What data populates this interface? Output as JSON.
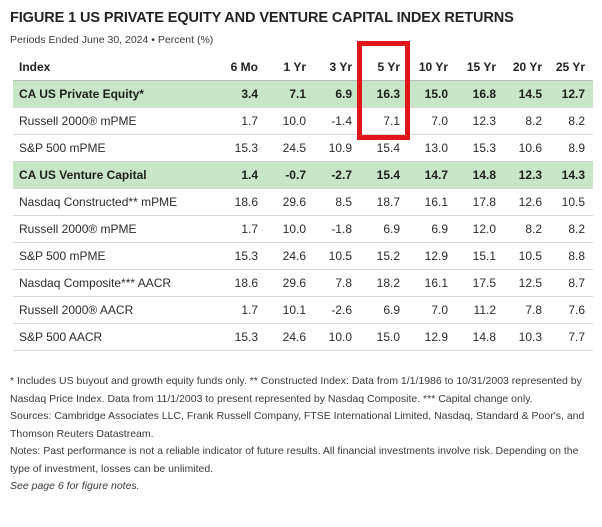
{
  "title": "FIGURE 1  US PRIVATE EQUITY AND VENTURE CAPITAL INDEX RETURNS",
  "subtitle": "Periods Ended June 30, 2024 • Percent (%)",
  "table": {
    "columns": [
      "Index",
      "6 Mo",
      "1 Yr",
      "3 Yr",
      "5 Yr",
      "10 Yr",
      "15 Yr",
      "20 Yr",
      "25 Yr"
    ],
    "highlighted_column": "5 Yr",
    "highlight_color": "#e0161b",
    "group_header_color": "#c7e5c7",
    "rows": [
      {
        "label": "CA US Private Equity*",
        "group_header": true,
        "values": [
          "3.4",
          "7.1",
          "6.9",
          "16.3",
          "15.0",
          "16.8",
          "14.5",
          "12.7"
        ]
      },
      {
        "label": "Russell 2000® mPME",
        "group_header": false,
        "values": [
          "1.7",
          "10.0",
          "-1.4",
          "7.1",
          "7.0",
          "12.3",
          "8.2",
          "8.2"
        ]
      },
      {
        "label": "S&P 500 mPME",
        "group_header": false,
        "values": [
          "15.3",
          "24.5",
          "10.9",
          "15.4",
          "13.0",
          "15.3",
          "10.6",
          "8.9"
        ]
      },
      {
        "label": "CA US Venture Capital",
        "group_header": true,
        "values": [
          "1.4",
          "-0.7",
          "-2.7",
          "15.4",
          "14.7",
          "14.8",
          "12.3",
          "14.3"
        ]
      },
      {
        "label": "Nasdaq Constructed** mPME",
        "group_header": false,
        "values": [
          "18.6",
          "29.6",
          "8.5",
          "18.7",
          "16.1",
          "17.8",
          "12.6",
          "10.5"
        ]
      },
      {
        "label": "Russell 2000® mPME",
        "group_header": false,
        "values": [
          "1.7",
          "10.0",
          "-1.8",
          "6.9",
          "6.9",
          "12.0",
          "8.2",
          "8.2"
        ]
      },
      {
        "label": "S&P 500 mPME",
        "group_header": false,
        "values": [
          "15.3",
          "24.6",
          "10.5",
          "15.2",
          "12.9",
          "15.1",
          "10.5",
          "8.8"
        ]
      },
      {
        "label": "Nasdaq Composite*** AACR",
        "group_header": false,
        "values": [
          "18.6",
          "29.6",
          "7.8",
          "18.2",
          "16.1",
          "17.5",
          "12.5",
          "8.7"
        ]
      },
      {
        "label": "Russell 2000® AACR",
        "group_header": false,
        "values": [
          "1.7",
          "10.1",
          "-2.6",
          "6.9",
          "7.0",
          "11.2",
          "7.8",
          "7.6"
        ]
      },
      {
        "label": "S&P 500 AACR",
        "group_header": false,
        "values": [
          "15.3",
          "24.6",
          "10.0",
          "15.0",
          "12.9",
          "14.8",
          "10.3",
          "7.7"
        ]
      }
    ]
  },
  "notes": {
    "footnote": "* Includes US buyout and growth equity funds only. ** Constructed Index: Data from 1/1/1986 to 10/31/2003 represented by Nasdaq Price Index. Data from 11/1/2003 to present represented by Nasdaq Composite. *** Capital change only.",
    "sources": "Sources: Cambridge Associates LLC, Frank Russell Company, FTSE International Limited, Nasdaq, Standard & Poor's, and Thomson Reuters Datastream.",
    "disclaimer": "Notes: Past performance is not a reliable indicator of future results. All financial investments involve risk. Depending on the type of investment, losses can be unlimited.",
    "see_page": "See page 6 for figure notes."
  }
}
